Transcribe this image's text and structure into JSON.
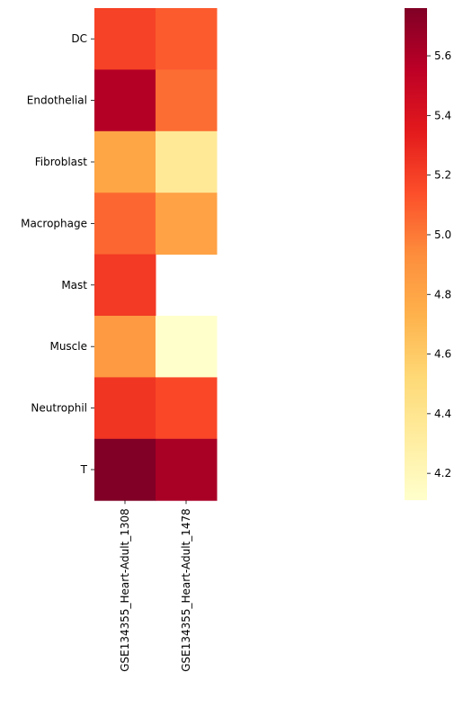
{
  "chart_data": {
    "type": "heatmap",
    "title": "",
    "xlabel": "",
    "ylabel": "",
    "x_categories": [
      "GSE134355_Heart-Adult_1308",
      "GSE134355_Heart-Adult_1478"
    ],
    "y_categories": [
      "DC",
      "Endothelial",
      "Fibroblast",
      "Macrophage",
      "Mast",
      "Muscle",
      "Neutrophil",
      "T"
    ],
    "values": [
      [
        5.19,
        5.1
      ],
      [
        5.58,
        5.04
      ],
      [
        4.8,
        4.36
      ],
      [
        5.06,
        4.82
      ],
      [
        5.22,
        null
      ],
      [
        4.86,
        4.11
      ],
      [
        5.24,
        5.17
      ],
      [
        5.76,
        5.62
      ]
    ],
    "colorbar": {
      "colormap": "YlOrRd",
      "vmin": 4.11,
      "vmax": 5.76,
      "ticks": [
        4.2,
        4.4,
        4.6,
        4.8,
        5.0,
        5.2,
        5.4,
        5.6
      ],
      "tick_labels": [
        "4.2",
        "4.4",
        "4.6",
        "4.8",
        "5.0",
        "5.2",
        "5.4",
        "5.6"
      ]
    }
  }
}
